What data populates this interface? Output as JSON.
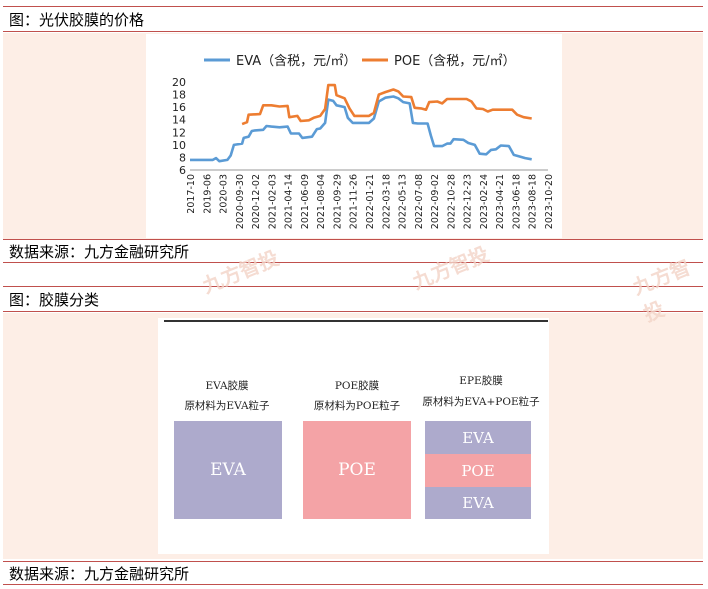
{
  "fig1": {
    "title": "图：光伏胶膜的价格",
    "source": "数据来源：九方金融研究所"
  },
  "fig2": {
    "title": "图：胶膜分类",
    "source": "数据来源：九方金融研究所",
    "columns": [
      {
        "name": "EVA胶膜",
        "desc": "原材料为EVA粒子",
        "layers": [
          "EVA"
        ]
      },
      {
        "name": "POE胶膜",
        "desc": "原材料为POE粒子",
        "layers": [
          "POE"
        ]
      },
      {
        "name": "EPE胶膜",
        "desc": "原材料为EVA+POE粒子",
        "layers": [
          "EVA",
          "POE",
          "EVA"
        ]
      }
    ]
  },
  "watermarks": [
    "九方智投",
    "九方智投",
    "九方智投"
  ],
  "colors": {
    "eva_line": "#5b9bd5",
    "poe_line": "#ed7d31",
    "eva_box": "#adaacc",
    "poe_box": "#f4a3a6",
    "rule": "#c0504d"
  },
  "chart_data": {
    "type": "line",
    "title": "",
    "xlabel": "",
    "ylabel": "",
    "ylim": [
      6,
      20
    ],
    "yticks": [
      6,
      8,
      10,
      12,
      14,
      16,
      18,
      20
    ],
    "grid": false,
    "legend_position": "top",
    "x_tick_labels": [
      "2017-10",
      "2019-06",
      "2020-03",
      "2020-09-30",
      "2020-12-02",
      "2021-02-03",
      "2021-04-14",
      "2021-06-09",
      "2021-08-04",
      "2021-09-29",
      "2021-11-26",
      "2022-01-21",
      "2022-03-18",
      "2022-05-13",
      "2022-07-08",
      "2022-09-02",
      "2022-10-28",
      "2022-12-23",
      "2023-02-24",
      "2023-04-21",
      "2023-06-18",
      "2023-08-18",
      "2023-10-20"
    ],
    "x_positions": [
      0,
      1,
      2,
      3,
      4,
      5,
      6,
      7,
      8,
      9,
      10,
      11,
      12,
      13,
      14,
      15,
      16,
      17,
      18,
      19,
      20,
      21,
      22
    ],
    "series": [
      {
        "name": "EVA（含税，元/㎡）",
        "color": "#5b9bd5",
        "points": [
          [
            0,
            7.6
          ],
          [
            1,
            7.6
          ],
          [
            1.4,
            7.6
          ],
          [
            1.6,
            7.9
          ],
          [
            1.8,
            7.4
          ],
          [
            2.3,
            7.6
          ],
          [
            2.5,
            8.3
          ],
          [
            2.7,
            10.0
          ],
          [
            3.2,
            10.2
          ],
          [
            3.3,
            11.1
          ],
          [
            3.6,
            11.3
          ],
          [
            3.8,
            12.2
          ],
          [
            4.0,
            12.3
          ],
          [
            4.5,
            12.4
          ],
          [
            4.7,
            13.0
          ],
          [
            5.0,
            12.9
          ],
          [
            5.5,
            12.8
          ],
          [
            6.0,
            12.9
          ],
          [
            6.2,
            11.8
          ],
          [
            6.7,
            11.8
          ],
          [
            6.9,
            11.1
          ],
          [
            7.5,
            11.3
          ],
          [
            7.8,
            12.5
          ],
          [
            8.0,
            12.6
          ],
          [
            8.3,
            13.5
          ],
          [
            8.5,
            17.2
          ],
          [
            8.8,
            17.0
          ],
          [
            9.0,
            16.3
          ],
          [
            9.5,
            16.0
          ],
          [
            9.7,
            14.3
          ],
          [
            10.0,
            13.5
          ],
          [
            11.0,
            13.5
          ],
          [
            11.3,
            14.2
          ],
          [
            11.6,
            16.9
          ],
          [
            12.0,
            17.5
          ],
          [
            12.5,
            17.7
          ],
          [
            12.8,
            17.4
          ],
          [
            13.1,
            16.8
          ],
          [
            13.5,
            16.6
          ],
          [
            13.7,
            13.5
          ],
          [
            14.0,
            13.4
          ],
          [
            14.6,
            13.4
          ],
          [
            14.8,
            11.5
          ],
          [
            15.0,
            9.8
          ],
          [
            15.5,
            9.8
          ],
          [
            15.8,
            10.2
          ],
          [
            16.0,
            10.2
          ],
          [
            16.2,
            10.9
          ],
          [
            16.8,
            10.8
          ],
          [
            17.1,
            10.3
          ],
          [
            17.5,
            10.0
          ],
          [
            17.8,
            8.6
          ],
          [
            18.2,
            8.5
          ],
          [
            18.5,
            9.2
          ],
          [
            18.8,
            9.3
          ],
          [
            19.1,
            9.9
          ],
          [
            19.6,
            9.8
          ],
          [
            19.9,
            8.4
          ],
          [
            20.2,
            8.2
          ],
          [
            20.6,
            7.9
          ],
          [
            21.0,
            7.7
          ]
        ]
      },
      {
        "name": "POE（含税，元/㎡）",
        "color": "#ed7d31",
        "points": [
          [
            3.2,
            13.3
          ],
          [
            3.5,
            13.6
          ],
          [
            3.6,
            14.8
          ],
          [
            4.3,
            14.9
          ],
          [
            4.5,
            16.3
          ],
          [
            5.0,
            16.3
          ],
          [
            5.5,
            16.1
          ],
          [
            6.0,
            16.2
          ],
          [
            6.1,
            14.4
          ],
          [
            6.6,
            14.6
          ],
          [
            6.8,
            13.8
          ],
          [
            7.3,
            13.9
          ],
          [
            7.6,
            14.3
          ],
          [
            8.0,
            14.6
          ],
          [
            8.3,
            15.7
          ],
          [
            8.5,
            19.5
          ],
          [
            8.9,
            19.5
          ],
          [
            9.0,
            17.9
          ],
          [
            9.5,
            17.4
          ],
          [
            9.8,
            15.8
          ],
          [
            10.1,
            14.6
          ],
          [
            11.0,
            14.6
          ],
          [
            11.3,
            15.1
          ],
          [
            11.6,
            18.0
          ],
          [
            12.0,
            18.4
          ],
          [
            12.5,
            18.8
          ],
          [
            12.8,
            18.5
          ],
          [
            13.1,
            17.7
          ],
          [
            13.6,
            17.6
          ],
          [
            13.8,
            15.9
          ],
          [
            14.2,
            15.8
          ],
          [
            14.5,
            15.6
          ],
          [
            14.7,
            16.8
          ],
          [
            15.2,
            16.9
          ],
          [
            15.5,
            16.6
          ],
          [
            15.8,
            17.3
          ],
          [
            17.0,
            17.3
          ],
          [
            17.3,
            16.9
          ],
          [
            17.6,
            15.8
          ],
          [
            18.0,
            15.7
          ],
          [
            18.3,
            15.3
          ],
          [
            18.6,
            15.6
          ],
          [
            19.8,
            15.6
          ],
          [
            20.1,
            14.8
          ],
          [
            20.5,
            14.4
          ],
          [
            21.0,
            14.2
          ]
        ]
      }
    ]
  }
}
